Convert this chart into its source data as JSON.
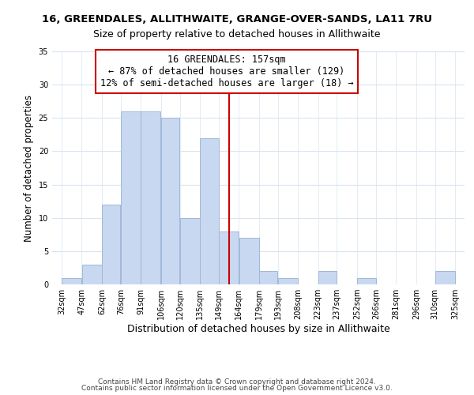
{
  "title": "16, GREENDALES, ALLITHWAITE, GRANGE-OVER-SANDS, LA11 7RU",
  "subtitle": "Size of property relative to detached houses in Allithwaite",
  "xlabel": "Distribution of detached houses by size in Allithwaite",
  "ylabel": "Number of detached properties",
  "bar_left_edges": [
    32,
    47,
    62,
    76,
    91,
    106,
    120,
    135,
    149,
    164,
    179,
    193,
    208,
    223,
    237,
    252,
    266,
    281,
    296,
    310
  ],
  "bar_widths": [
    15,
    15,
    14,
    15,
    15,
    14,
    15,
    14,
    15,
    15,
    14,
    15,
    15,
    14,
    15,
    14,
    15,
    15,
    14,
    15
  ],
  "bar_heights": [
    1,
    3,
    12,
    26,
    26,
    25,
    10,
    22,
    8,
    7,
    2,
    1,
    0,
    2,
    0,
    1,
    0,
    0,
    0,
    2
  ],
  "bar_color": "#c8d8f0",
  "bar_edge_color": "#a0b8d8",
  "grid_color": "#d8e4f0",
  "vline_x": 157,
  "vline_color": "#cc0000",
  "annotation_line1": "16 GREENDALES: 157sqm",
  "annotation_line2": "← 87% of detached houses are smaller (129)",
  "annotation_line3": "12% of semi-detached houses are larger (18) →",
  "annotation_box_facecolor": "#ffffff",
  "annotation_box_edgecolor": "#cc0000",
  "xlim_min": 25,
  "xlim_max": 332,
  "ylim_min": 0,
  "ylim_max": 35,
  "yticks": [
    0,
    5,
    10,
    15,
    20,
    25,
    30,
    35
  ],
  "xtick_labels": [
    "32sqm",
    "47sqm",
    "62sqm",
    "76sqm",
    "91sqm",
    "106sqm",
    "120sqm",
    "135sqm",
    "149sqm",
    "164sqm",
    "179sqm",
    "193sqm",
    "208sqm",
    "223sqm",
    "237sqm",
    "252sqm",
    "266sqm",
    "281sqm",
    "296sqm",
    "310sqm",
    "325sqm"
  ],
  "xtick_positions": [
    32,
    47,
    62,
    76,
    91,
    106,
    120,
    135,
    149,
    164,
    179,
    193,
    208,
    223,
    237,
    252,
    266,
    281,
    296,
    310,
    325
  ],
  "footer_line1": "Contains HM Land Registry data © Crown copyright and database right 2024.",
  "footer_line2": "Contains public sector information licensed under the Open Government Licence v3.0.",
  "title_fontsize": 9.5,
  "subtitle_fontsize": 9,
  "xlabel_fontsize": 9,
  "ylabel_fontsize": 8.5,
  "tick_fontsize": 7,
  "annotation_fontsize": 8.5,
  "footer_fontsize": 6.5
}
